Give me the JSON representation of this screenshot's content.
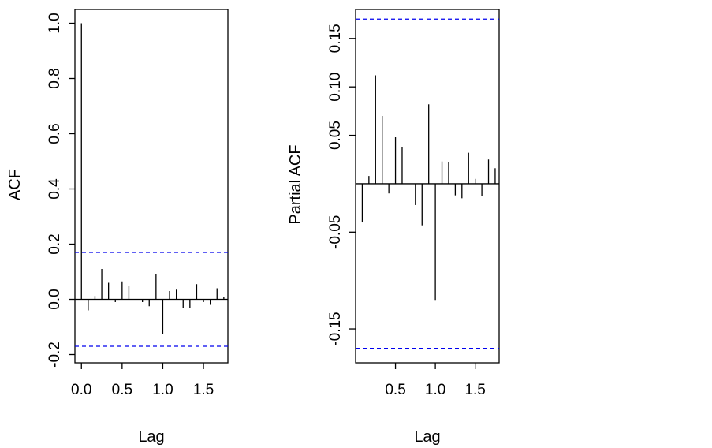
{
  "chart_data": [
    {
      "type": "bar",
      "title": "",
      "xlabel": "Lag",
      "ylabel": "ACF",
      "xlim": [
        -0.08,
        1.8
      ],
      "ylim": [
        -0.23,
        1.05
      ],
      "xticks": [
        "0.0",
        "0.5",
        "1.0",
        "1.5"
      ],
      "yticks": [
        "-0.2",
        "0.0",
        "0.2",
        "0.4",
        "0.6",
        "0.8",
        "1.0"
      ],
      "confidence_bound": 0.17,
      "bound_color": "#0000ee",
      "grid": false,
      "x": [
        0.0,
        0.0833,
        0.1667,
        0.25,
        0.3333,
        0.4167,
        0.5,
        0.5833,
        0.6667,
        0.75,
        0.8333,
        0.9167,
        1.0,
        1.0833,
        1.1667,
        1.25,
        1.3333,
        1.4167,
        1.5,
        1.5833,
        1.6667,
        1.75
      ],
      "values": [
        1.0,
        -0.04,
        0.012,
        0.11,
        0.06,
        -0.01,
        0.065,
        0.05,
        0.0,
        -0.01,
        -0.025,
        0.09,
        -0.125,
        0.03,
        0.035,
        -0.03,
        -0.03,
        0.055,
        -0.01,
        -0.02,
        0.04,
        0.01
      ]
    },
    {
      "type": "bar",
      "title": "",
      "xlabel": "Lag",
      "ylabel": "Partial ACF",
      "xlim": [
        0.0,
        1.8
      ],
      "ylim": [
        -0.185,
        0.18
      ],
      "xticks": [
        "0.5",
        "1.0",
        "1.5"
      ],
      "yticks": [
        "-0.15",
        "-0.05",
        "0.05",
        "0.10",
        "0.15"
      ],
      "confidence_bound": 0.17,
      "bound_color": "#0000ee",
      "grid": false,
      "x": [
        0.0833,
        0.1667,
        0.25,
        0.3333,
        0.4167,
        0.5,
        0.5833,
        0.6667,
        0.75,
        0.8333,
        0.9167,
        1.0,
        1.0833,
        1.1667,
        1.25,
        1.3333,
        1.4167,
        1.5,
        1.5833,
        1.6667,
        1.75
      ],
      "values": [
        -0.04,
        0.008,
        0.112,
        0.07,
        -0.01,
        0.048,
        0.038,
        0.0,
        -0.022,
        -0.043,
        0.082,
        -0.12,
        0.023,
        0.022,
        -0.012,
        -0.015,
        0.032,
        0.005,
        -0.013,
        0.025,
        0.016
      ]
    }
  ]
}
